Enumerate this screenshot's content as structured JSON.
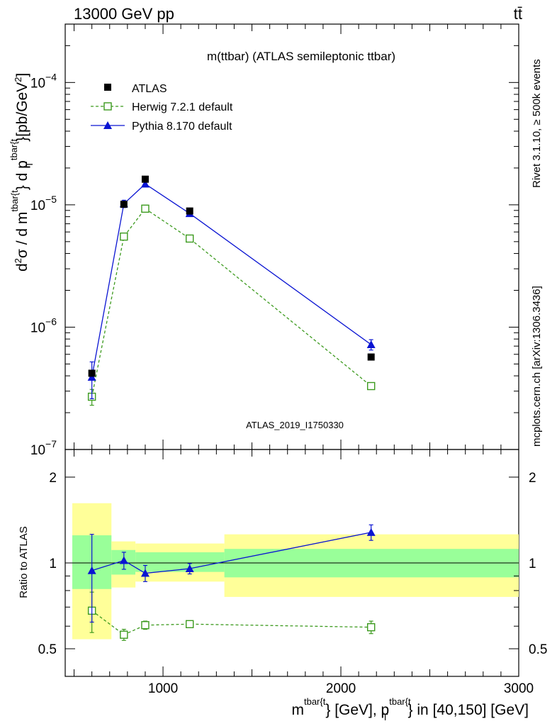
{
  "header": {
    "energy_label": "13000 GeV pp",
    "process_label": "tt̄"
  },
  "side_labels": {
    "rivet": "Rivet 3.1.10, ≥ 500k events",
    "source": "mcplots.cern.ch [arXiv:1306.3436]"
  },
  "colors": {
    "data": "#000000",
    "herwig": "#3c9a1e",
    "pythia": "#0a14d2",
    "band_outer": "#ffff99",
    "band_inner": "#99ff99",
    "watermark": "#999999"
  },
  "chart_data": [
    {
      "type": "scatter",
      "title": "m(ttbar) (ATLAS semileptonic ttbar)",
      "analysis_id": "ATLAS_2019_I1750330",
      "scale": "log",
      "xlim": [
        450,
        3000
      ],
      "ylim": [
        1e-07,
        0.0003
      ],
      "y_tick_labels": [
        {
          "value": 1e-07,
          "base": "10",
          "exp": "−7"
        },
        {
          "value": 1e-06,
          "base": "10",
          "exp": "−6"
        },
        {
          "value": 1e-05,
          "base": "10",
          "exp": "−5"
        },
        {
          "value": 0.0001,
          "base": "10",
          "exp": "−4"
        }
      ],
      "ylabel_parts": {
        "d2": "d",
        "two": "2",
        "sigma": "σ / d m",
        "sup1": "tbar{t",
        "mid1": "} d p",
        "sup2": "tbar{t",
        "sub2": "T",
        "mid2": "}[pb/GeV",
        "exp": "2",
        "end": "]"
      },
      "x": [
        600,
        780,
        900,
        1150,
        2170
      ],
      "series": [
        {
          "name": "ATLAS",
          "marker": "square-filled",
          "values": [
            4.2e-07,
            1.01e-05,
            1.62e-05,
            8.9e-06,
            5.7e-07
          ],
          "errors": [
            0,
            0,
            0,
            0,
            0
          ]
        },
        {
          "name": "Herwig 7.2.1 default",
          "marker": "square-open",
          "line": "dashed",
          "values": [
            2.7e-07,
            5.5e-06,
            9.3e-06,
            5.3e-06,
            3.3e-07
          ],
          "errors": [
            4e-08,
            2.5e-07,
            2.5e-07,
            1.5e-07,
            1.2e-08
          ]
        },
        {
          "name": "Pythia 8.170 default",
          "marker": "triangle",
          "line": "solid",
          "values": [
            3.9e-07,
            1.02e-05,
            1.48e-05,
            8.5e-06,
            7.2e-07
          ],
          "errors": [
            1.3e-07,
            7e-07,
            5e-07,
            3.5e-07,
            7e-08
          ]
        }
      ]
    },
    {
      "type": "scatter",
      "title": "Ratio to ATLAS",
      "ylabel": "Ratio to ATLAS",
      "scale": "log",
      "xlim": [
        450,
        3000
      ],
      "ylim": [
        0.4,
        2.5
      ],
      "xlabel_parts": {
        "m": "m",
        "sup1": "tbar{t",
        "mid": "} [GeV], p",
        "sup2": "tbar{t",
        "sub2": "T",
        "end": "} in [40,150] [GeV]"
      },
      "x_tick_labels": [
        {
          "value": 1000,
          "label": "1000"
        },
        {
          "value": 2000,
          "label": "2000"
        },
        {
          "value": 3000,
          "label": "3000"
        }
      ],
      "y_tick_labels": [
        {
          "value": 0.5,
          "label": "0.5"
        },
        {
          "value": 1,
          "label": "1"
        },
        {
          "value": 2,
          "label": "2"
        }
      ],
      "bands": [
        {
          "x0": 490,
          "x1": 710,
          "inner": [
            0.81,
            1.25
          ],
          "outer": [
            0.54,
            1.62
          ]
        },
        {
          "x0": 710,
          "x1": 845,
          "inner": [
            0.91,
            1.11
          ],
          "outer": [
            0.82,
            1.19
          ]
        },
        {
          "x0": 845,
          "x1": 1345,
          "inner": [
            0.93,
            1.09
          ],
          "outer": [
            0.86,
            1.17
          ]
        },
        {
          "x0": 1345,
          "x1": 3000,
          "inner": [
            0.89,
            1.12
          ],
          "outer": [
            0.76,
            1.26
          ]
        }
      ],
      "x": [
        600,
        780,
        900,
        1150,
        2170
      ],
      "series": [
        {
          "name": "Herwig 7.2.1 default",
          "marker": "square-open",
          "line": "dashed",
          "values": [
            0.68,
            0.56,
            0.605,
            0.61,
            0.595
          ],
          "errors": [
            0.11,
            0.025,
            0.02,
            0.015,
            0.03
          ]
        },
        {
          "name": "Pythia 8.170 default",
          "marker": "triangle",
          "line": "solid",
          "values": [
            0.94,
            1.02,
            0.92,
            0.955,
            1.28
          ],
          "errors": [
            0.32,
            0.07,
            0.06,
            0.04,
            0.08
          ]
        }
      ]
    }
  ]
}
